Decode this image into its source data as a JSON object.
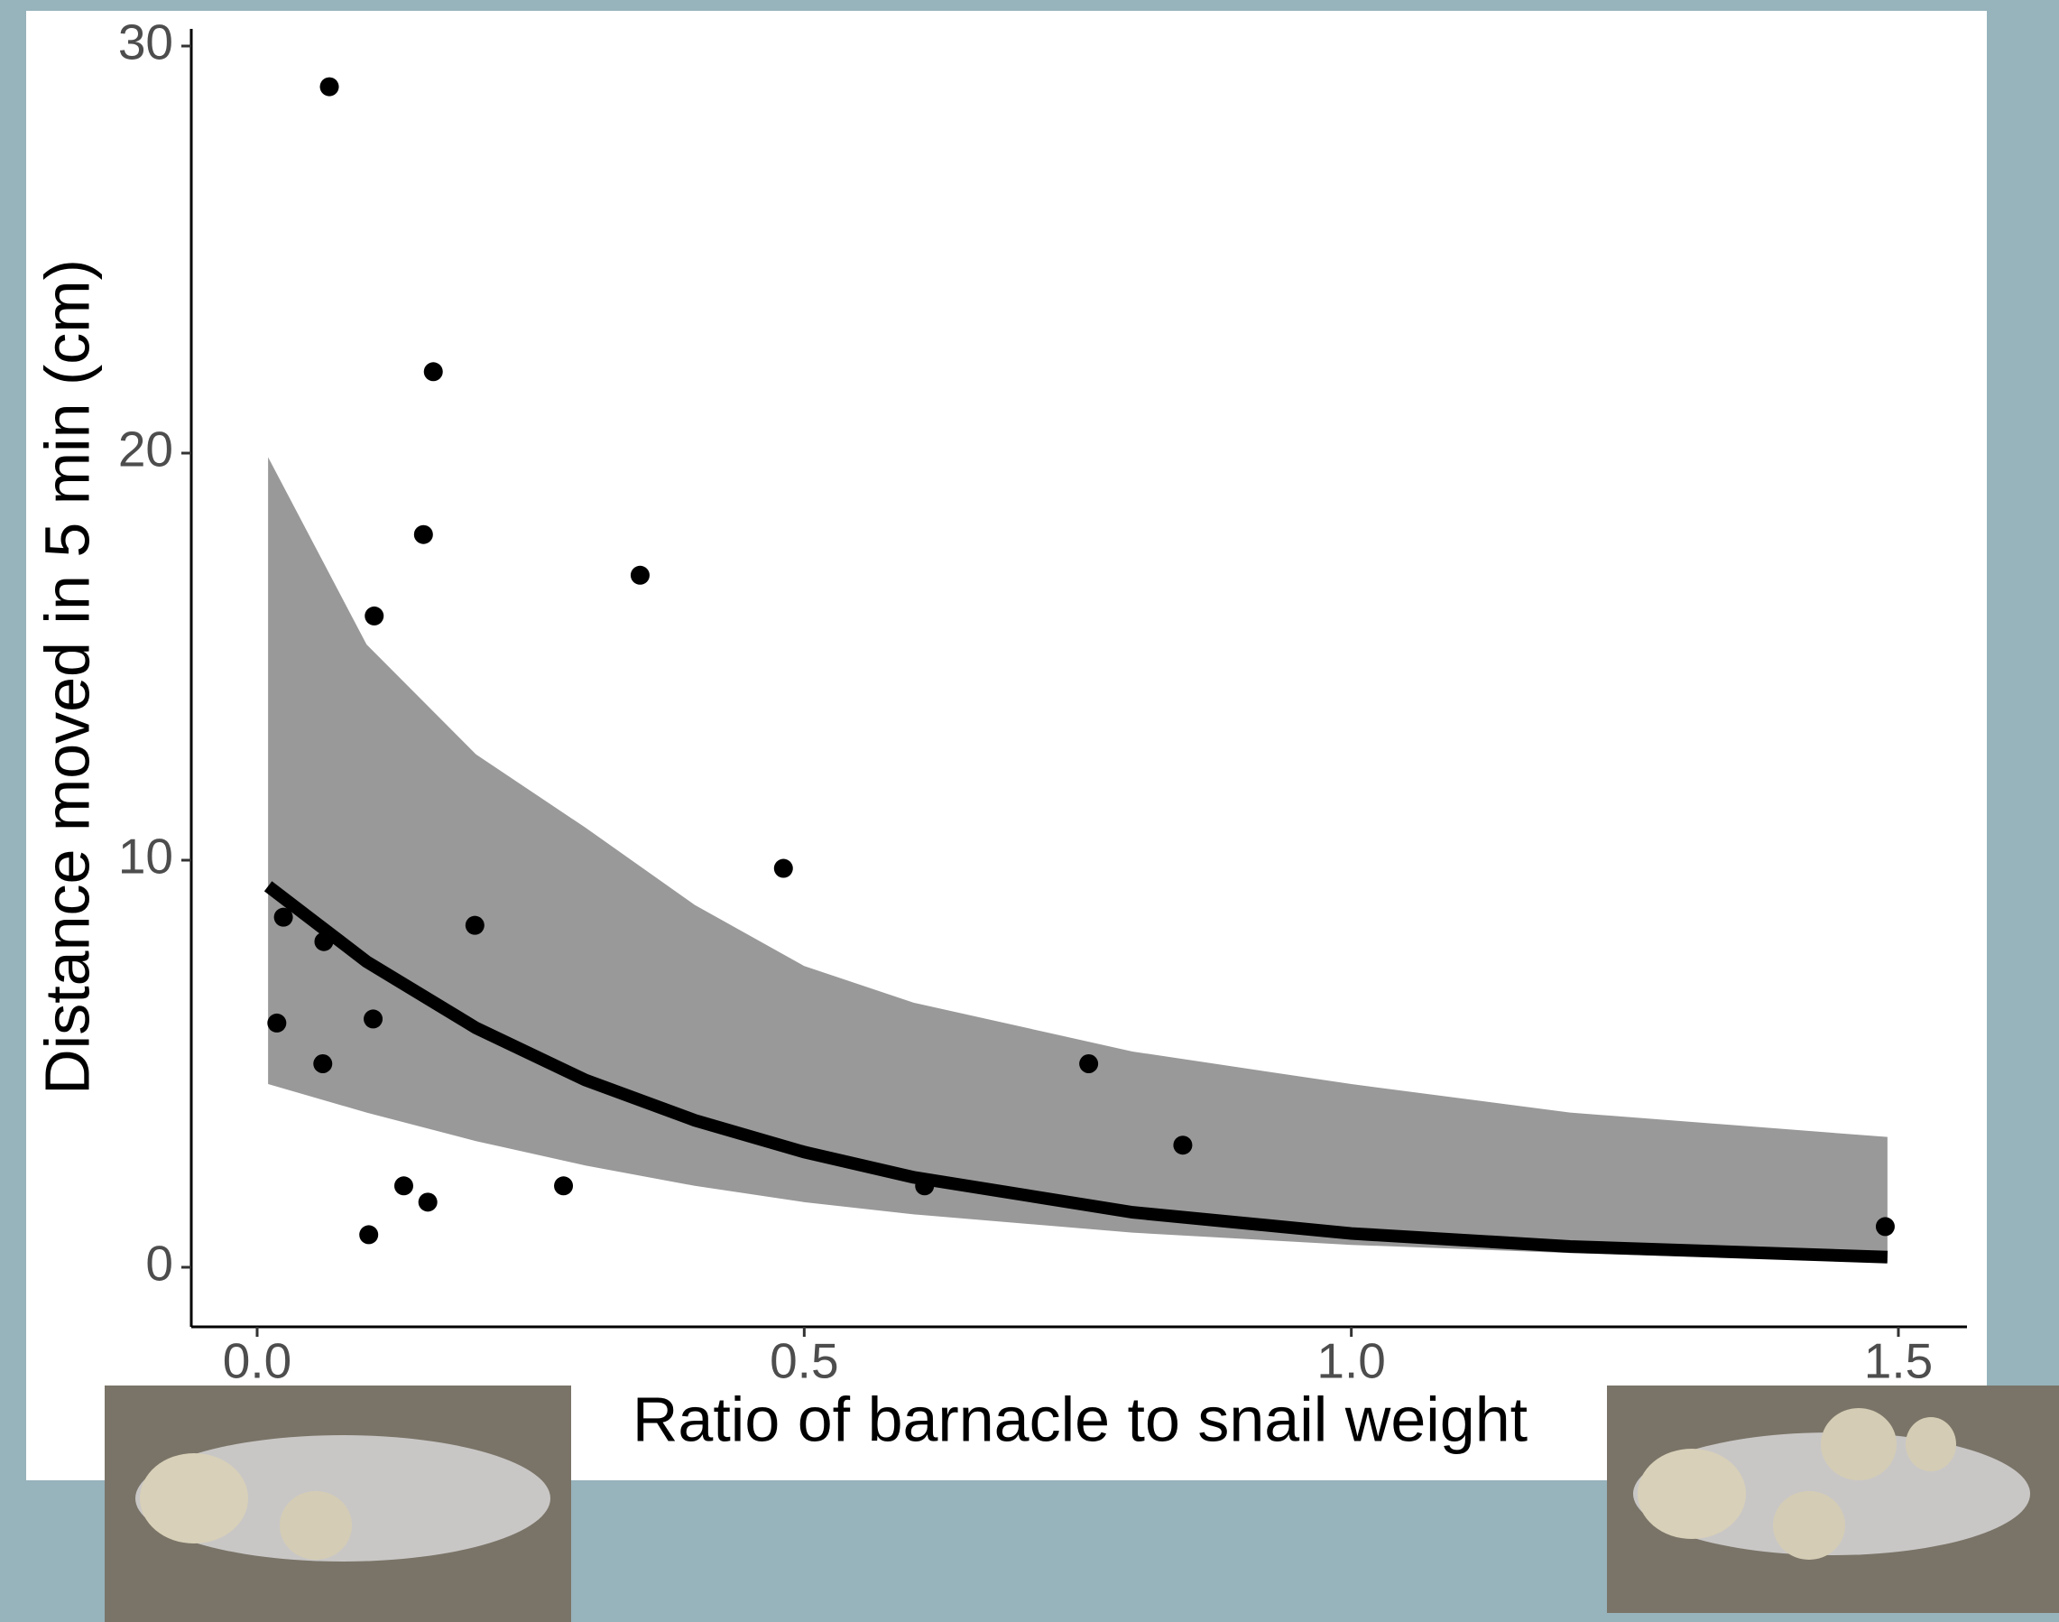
{
  "chart_data": {
    "type": "scatter",
    "x_label": "Ratio of barnacle to snail weight",
    "y_label": "Distance moved in 5 min (cm)",
    "x": [
      0.066,
      0.161,
      0.152,
      0.107,
      0.35,
      0.481,
      0.024,
      0.061,
      0.199,
      0.018,
      0.106,
      0.06,
      0.134,
      0.156,
      0.102,
      0.28,
      0.61,
      0.76,
      0.846,
      1.488
    ],
    "values": [
      29.0,
      22.0,
      18.0,
      16.0,
      17.0,
      9.8,
      8.6,
      8.0,
      8.4,
      6.0,
      6.1,
      5.0,
      2.0,
      1.6,
      0.8,
      2.0,
      2.0,
      5.0,
      3.0,
      1.0
    ],
    "color": "#000000",
    "fit": {
      "x": [
        0.01,
        0.1,
        0.2,
        0.3,
        0.4,
        0.5,
        0.6,
        0.8,
        1.0,
        1.2,
        1.49
      ],
      "values": [
        9.36,
        7.51,
        5.88,
        4.6,
        3.61,
        2.83,
        2.21,
        1.35,
        0.83,
        0.51,
        0.25
      ],
      "lower": [
        4.5,
        3.8,
        3.1,
        2.5,
        2.0,
        1.6,
        1.3,
        0.85,
        0.55,
        0.35,
        0.12
      ],
      "upper": [
        19.9,
        15.3,
        12.6,
        10.8,
        8.9,
        7.4,
        6.5,
        5.3,
        4.5,
        3.8,
        3.2
      ],
      "color": "#000000",
      "band_color": "#999999"
    },
    "xlim": [
      0,
      1.5
    ],
    "ylim": [
      0,
      30
    ],
    "xticks": [
      {
        "value": 0,
        "label": "0.0"
      },
      0.5,
      {
        "value": 1,
        "label": "1.0"
      },
      1.5
    ],
    "yticks": [
      0,
      10,
      20,
      30
    ],
    "grid": false
  }
}
